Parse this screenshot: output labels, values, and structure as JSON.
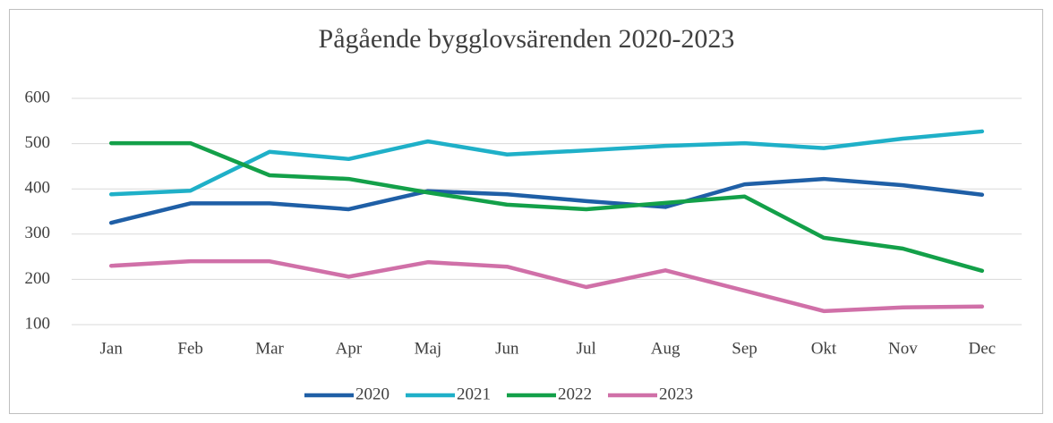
{
  "chart_data": {
    "type": "line",
    "title": "Pågående bygglovsärenden 2020-2023",
    "categories": [
      "Jan",
      "Feb",
      "Mar",
      "Apr",
      "Maj",
      "Jun",
      "Jul",
      "Aug",
      "Sep",
      "Okt",
      "Nov",
      "Dec"
    ],
    "series": [
      {
        "name": "2020",
        "color": "#1f5fa6",
        "values": [
          325,
          368,
          368,
          355,
          395,
          388,
          373,
          360,
          410,
          422,
          408,
          387
        ]
      },
      {
        "name": "2021",
        "color": "#1fb0c8",
        "values": [
          388,
          396,
          482,
          466,
          505,
          476,
          485,
          495,
          501,
          490,
          511,
          527
        ]
      },
      {
        "name": "2022",
        "color": "#13a049",
        "values": [
          501,
          501,
          430,
          422,
          392,
          365,
          355,
          369,
          383,
          292,
          268,
          219
        ]
      },
      {
        "name": "2023",
        "color": "#d070a8",
        "values": [
          230,
          240,
          240,
          206,
          238,
          228,
          183,
          220,
          175,
          130,
          138,
          140
        ]
      }
    ],
    "ylim": [
      100,
      600
    ],
    "yticks": [
      100,
      200,
      300,
      400,
      500,
      600
    ],
    "grid": true,
    "legend": "bottom"
  }
}
